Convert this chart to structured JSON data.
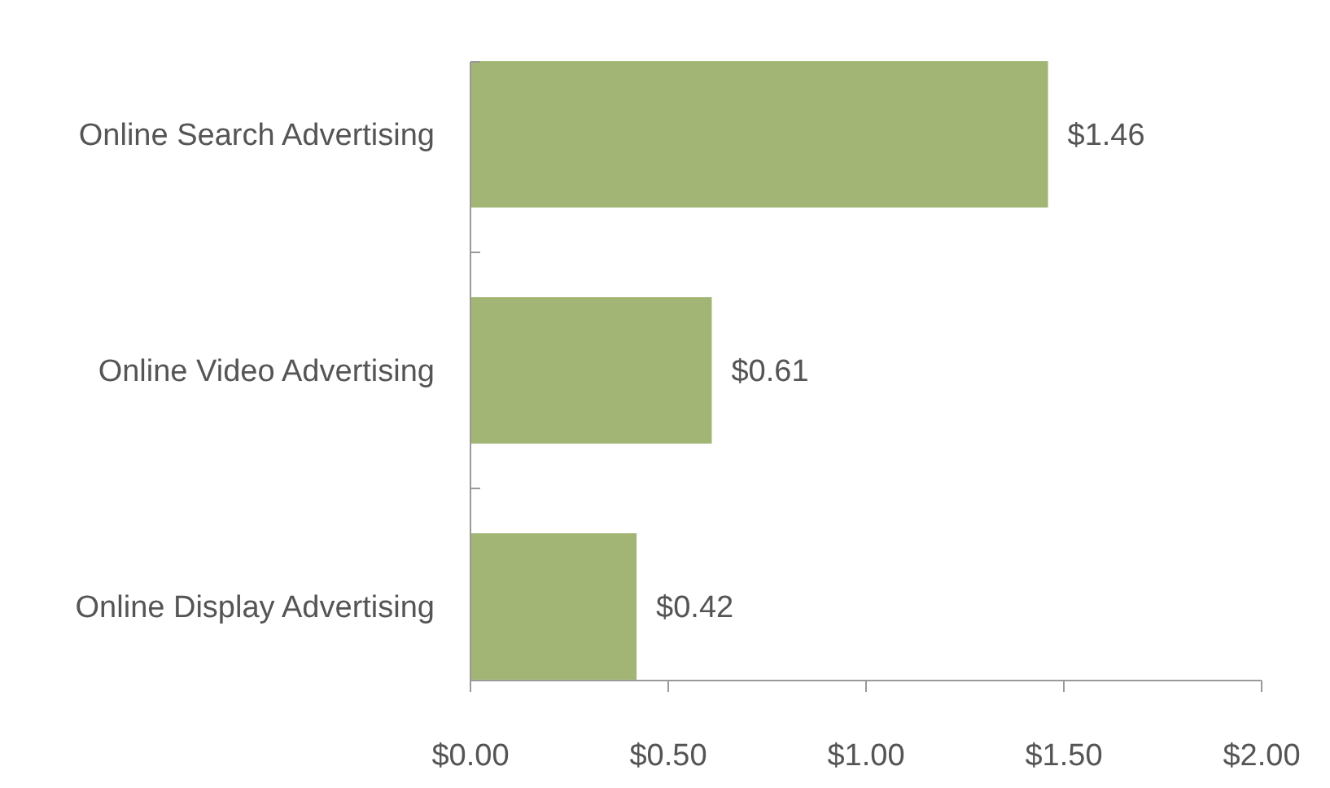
{
  "chart_data": {
    "type": "bar",
    "orientation": "horizontal",
    "categories": [
      "Online Search Advertising",
      "Online Video Advertising",
      "Online Display Advertising"
    ],
    "values": [
      1.46,
      0.61,
      0.42
    ],
    "color": "#a2b574",
    "value_labels": [
      "$1.46",
      "$0.61",
      "$0.42"
    ],
    "xlim": [
      0,
      2
    ],
    "xticks": [
      {
        "value": 0,
        "label": "$0.00"
      },
      {
        "value": 0.5,
        "label": "$0.50"
      },
      {
        "value": 1,
        "label": "$1.00"
      },
      {
        "value": 1.5,
        "label": "$1.50"
      },
      {
        "value": 2,
        "label": "$2.00"
      }
    ],
    "grid": false
  }
}
